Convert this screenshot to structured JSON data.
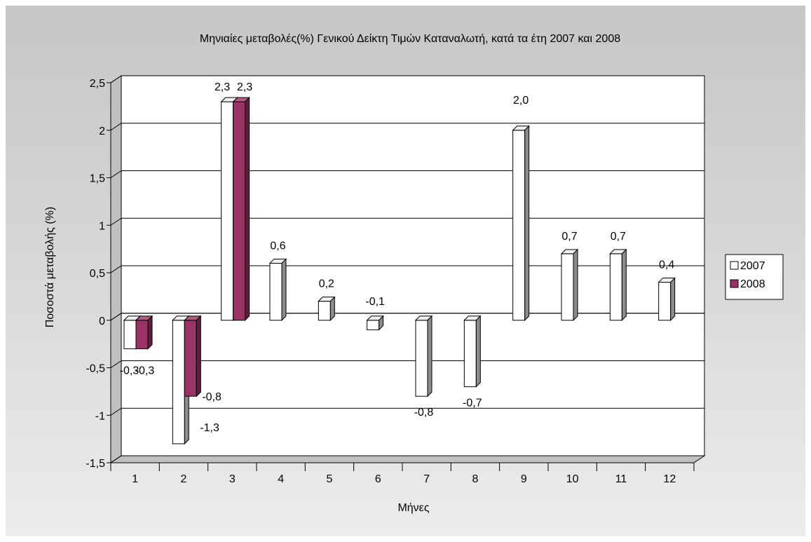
{
  "chart_data": {
    "type": "bar",
    "title": "Μηνιαίες μεταβολές(%) Γενικού Δείκτη Τιμών Καταναλωτή, κατά τα έτη 2007 και 2008",
    "xlabel": "Μήνες",
    "ylabel": "Ποσοστά μεταβολής (%)",
    "categories": [
      "1",
      "2",
      "3",
      "4",
      "5",
      "6",
      "7",
      "8",
      "9",
      "10",
      "11",
      "12"
    ],
    "ylim": [
      -1.5,
      2.5
    ],
    "yticks": [
      2.5,
      2,
      1.5,
      1,
      0.5,
      0,
      -0.5,
      -1,
      -1.5
    ],
    "ytick_labels": [
      "2,5",
      "2",
      "1,5",
      "1",
      "0,5",
      "0",
      "-0,5",
      "-1",
      "-1,5"
    ],
    "grid": true,
    "legend_position": "right",
    "series": [
      {
        "name": "2007",
        "color": "#ffffff",
        "values": [
          -0.3,
          -1.3,
          2.3,
          0.6,
          0.2,
          -0.1,
          -0.8,
          -0.7,
          2.0,
          0.7,
          0.7,
          0.4
        ],
        "labels": [
          "-0,3",
          "-1,3",
          "2,3",
          "0,6",
          "0,2",
          "-0,1",
          "-0,8",
          "-0,7",
          "2,0",
          "0,7",
          "0,7",
          "0,4"
        ]
      },
      {
        "name": "2008",
        "color": "#993366",
        "values": [
          -0.3,
          -0.8,
          2.3,
          null,
          null,
          null,
          null,
          null,
          null,
          null,
          null,
          null
        ],
        "labels": [
          "-0,3",
          "-0,8",
          "2,3",
          "",
          "",
          "",
          "",
          "",
          "",
          "",
          "",
          ""
        ]
      }
    ]
  }
}
